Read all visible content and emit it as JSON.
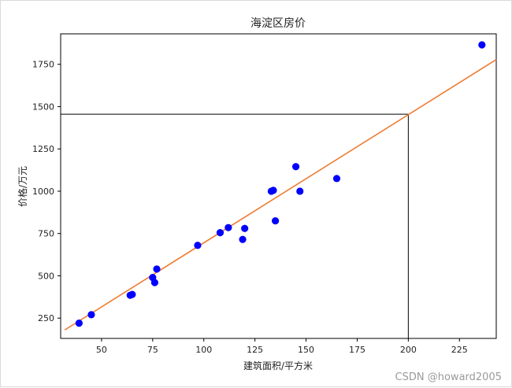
{
  "chart_data": {
    "type": "scatter",
    "title": "海淀区房价",
    "xlabel": "建筑面积/平方米",
    "ylabel": "价格/万元",
    "xlim": [
      30,
      243
    ],
    "ylim": [
      130,
      1930
    ],
    "xticks": [
      50,
      75,
      100,
      125,
      150,
      175,
      200,
      225
    ],
    "yticks": [
      250,
      500,
      750,
      1000,
      1250,
      1500,
      1750
    ],
    "grid": false,
    "points": {
      "color": "#0000ff",
      "x": [
        39,
        45,
        64,
        65,
        75,
        76,
        77,
        97,
        108,
        112,
        119,
        120,
        133,
        134,
        135,
        145,
        147,
        165,
        236
      ],
      "y": [
        220,
        270,
        385,
        390,
        490,
        460,
        540,
        680,
        755,
        785,
        715,
        780,
        1000,
        1005,
        825,
        1145,
        1000,
        1075,
        1865
      ]
    },
    "fit_line": {
      "color": "#ed7d31",
      "x": [
        32,
        243
      ],
      "y": [
        180,
        1778
      ]
    },
    "guide_lines": {
      "color": "#000000",
      "x_value": 200,
      "y_value": 1455
    }
  },
  "watermark": "CSDN @howard2005"
}
